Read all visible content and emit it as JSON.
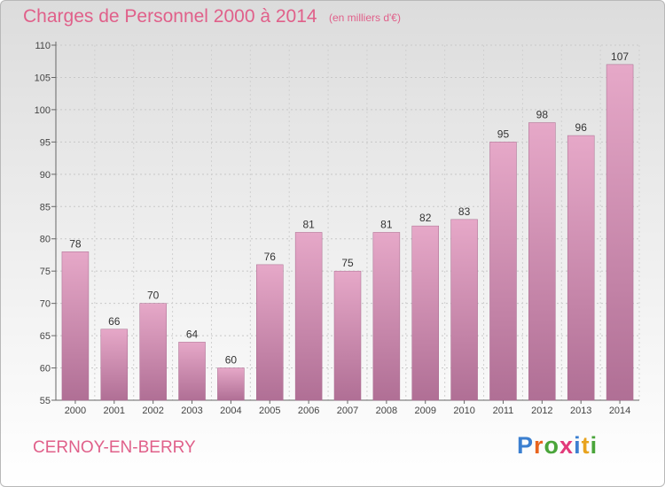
{
  "header": {
    "title": "Charges de Personnel 2000 à 2014",
    "subtitle": "(en milliers d'€)"
  },
  "footer": {
    "place": "CERNOY-EN-BERRY",
    "logo": {
      "text": "Proxiti",
      "letter_colors": [
        "#3b7fd0",
        "#e8641e",
        "#4aa53a",
        "#e23a7a",
        "#3b7fd0",
        "#e8a31e",
        "#4aa53a"
      ]
    }
  },
  "colors": {
    "bar_top": "#e6a8c8",
    "bar_bottom": "#b06f95",
    "title": "#e0608a"
  },
  "chart_data": {
    "type": "bar",
    "categories": [
      "2000",
      "2001",
      "2002",
      "2003",
      "2004",
      "2005",
      "2006",
      "2007",
      "2008",
      "2009",
      "2010",
      "2011",
      "2012",
      "2013",
      "2014"
    ],
    "values": [
      78,
      66,
      70,
      64,
      60,
      76,
      81,
      75,
      81,
      82,
      83,
      95,
      98,
      96,
      107
    ],
    "ylim": [
      55,
      110
    ],
    "yticks": [
      55,
      60,
      65,
      70,
      75,
      80,
      85,
      90,
      95,
      100,
      105,
      110
    ],
    "grid": true,
    "legend": "none"
  }
}
